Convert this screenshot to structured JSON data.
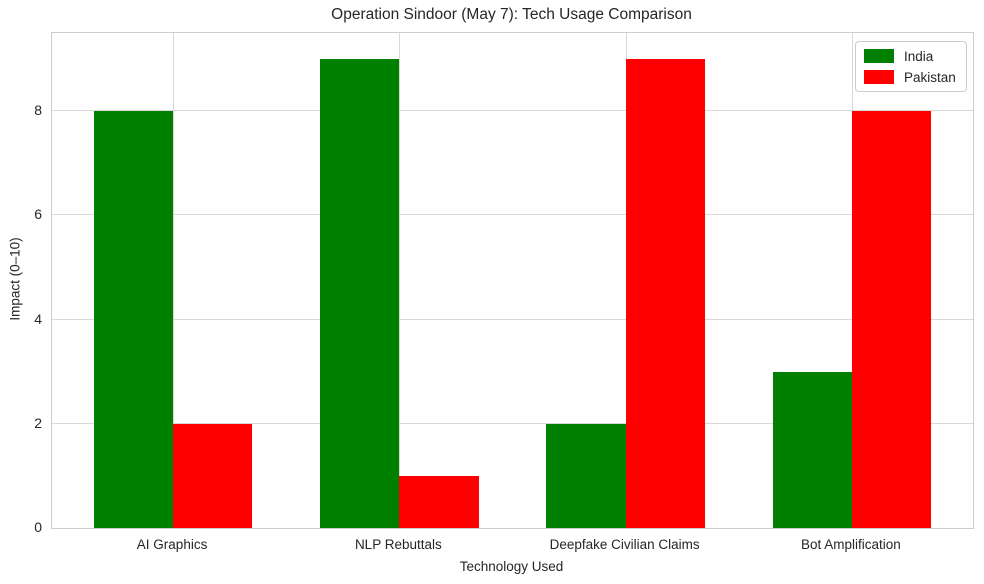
{
  "title": "Operation Sindoor (May 7): Tech Usage Comparison",
  "chart_data": {
    "type": "bar",
    "categories": [
      "AI Graphics",
      "NLP Rebuttals",
      "Deepfake Civilian Claims",
      "Bot Amplification"
    ],
    "series": [
      {
        "name": "India",
        "color": "#008000",
        "values": [
          8,
          9,
          2,
          3
        ]
      },
      {
        "name": "Pakistan",
        "color": "#ff0000",
        "values": [
          2,
          1,
          9,
          8
        ]
      }
    ],
    "title": "Operation Sindoor (May 7): Tech Usage Comparison",
    "xlabel": "Technology Used",
    "ylabel": "Impact (0–10)",
    "yticks": [
      0,
      2,
      4,
      6,
      8
    ],
    "ylim": [
      0,
      9.5
    ],
    "bar_width": 0.35,
    "grid": true,
    "legend_position": "upper right",
    "grid_color": "#d9d9d9",
    "axis_border_color": "#cccccc",
    "text_color": "#262626",
    "background_color": "#ffffff"
  }
}
